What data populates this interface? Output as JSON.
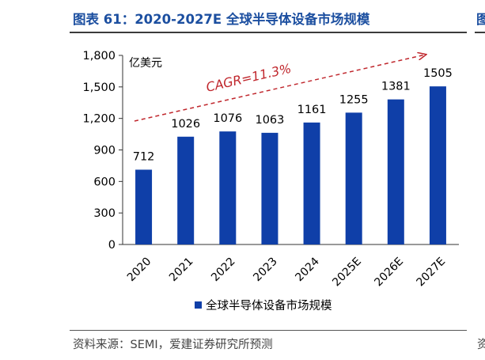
{
  "header": {
    "title": "图表 61：2020-2027E 全球半导体设备市场规模",
    "edge_char": "图"
  },
  "footer": {
    "source": "资料来源：SEMI，爱建证券研究所预测",
    "edge_char": "资"
  },
  "chart_data": {
    "type": "bar",
    "categories": [
      "2020",
      "2021",
      "2022",
      "2023",
      "2024",
      "2025E",
      "2026E",
      "2027E"
    ],
    "series": [
      {
        "name": "全球半导体设备市场规模",
        "values": [
          712,
          1026,
          1076,
          1063,
          1161,
          1255,
          1381,
          1505
        ]
      }
    ],
    "data_labels": [
      "712",
      "1026",
      "1076",
      "1063",
      "1161",
      "1255",
      "1381",
      "1505"
    ],
    "unit_label": "亿美元",
    "yticks": [
      0,
      300,
      600,
      900,
      1200,
      1500,
      1800
    ],
    "ytick_labels": [
      "0",
      "300",
      "600",
      "900",
      "1,200",
      "1,500",
      "1,800"
    ],
    "ylim": [
      0,
      1800
    ],
    "annotation": "CAGR=11.3%",
    "legend_position": "bottom",
    "grid": false,
    "bar_color": "#0f3fa8",
    "annotation_color": "#c0272d"
  }
}
